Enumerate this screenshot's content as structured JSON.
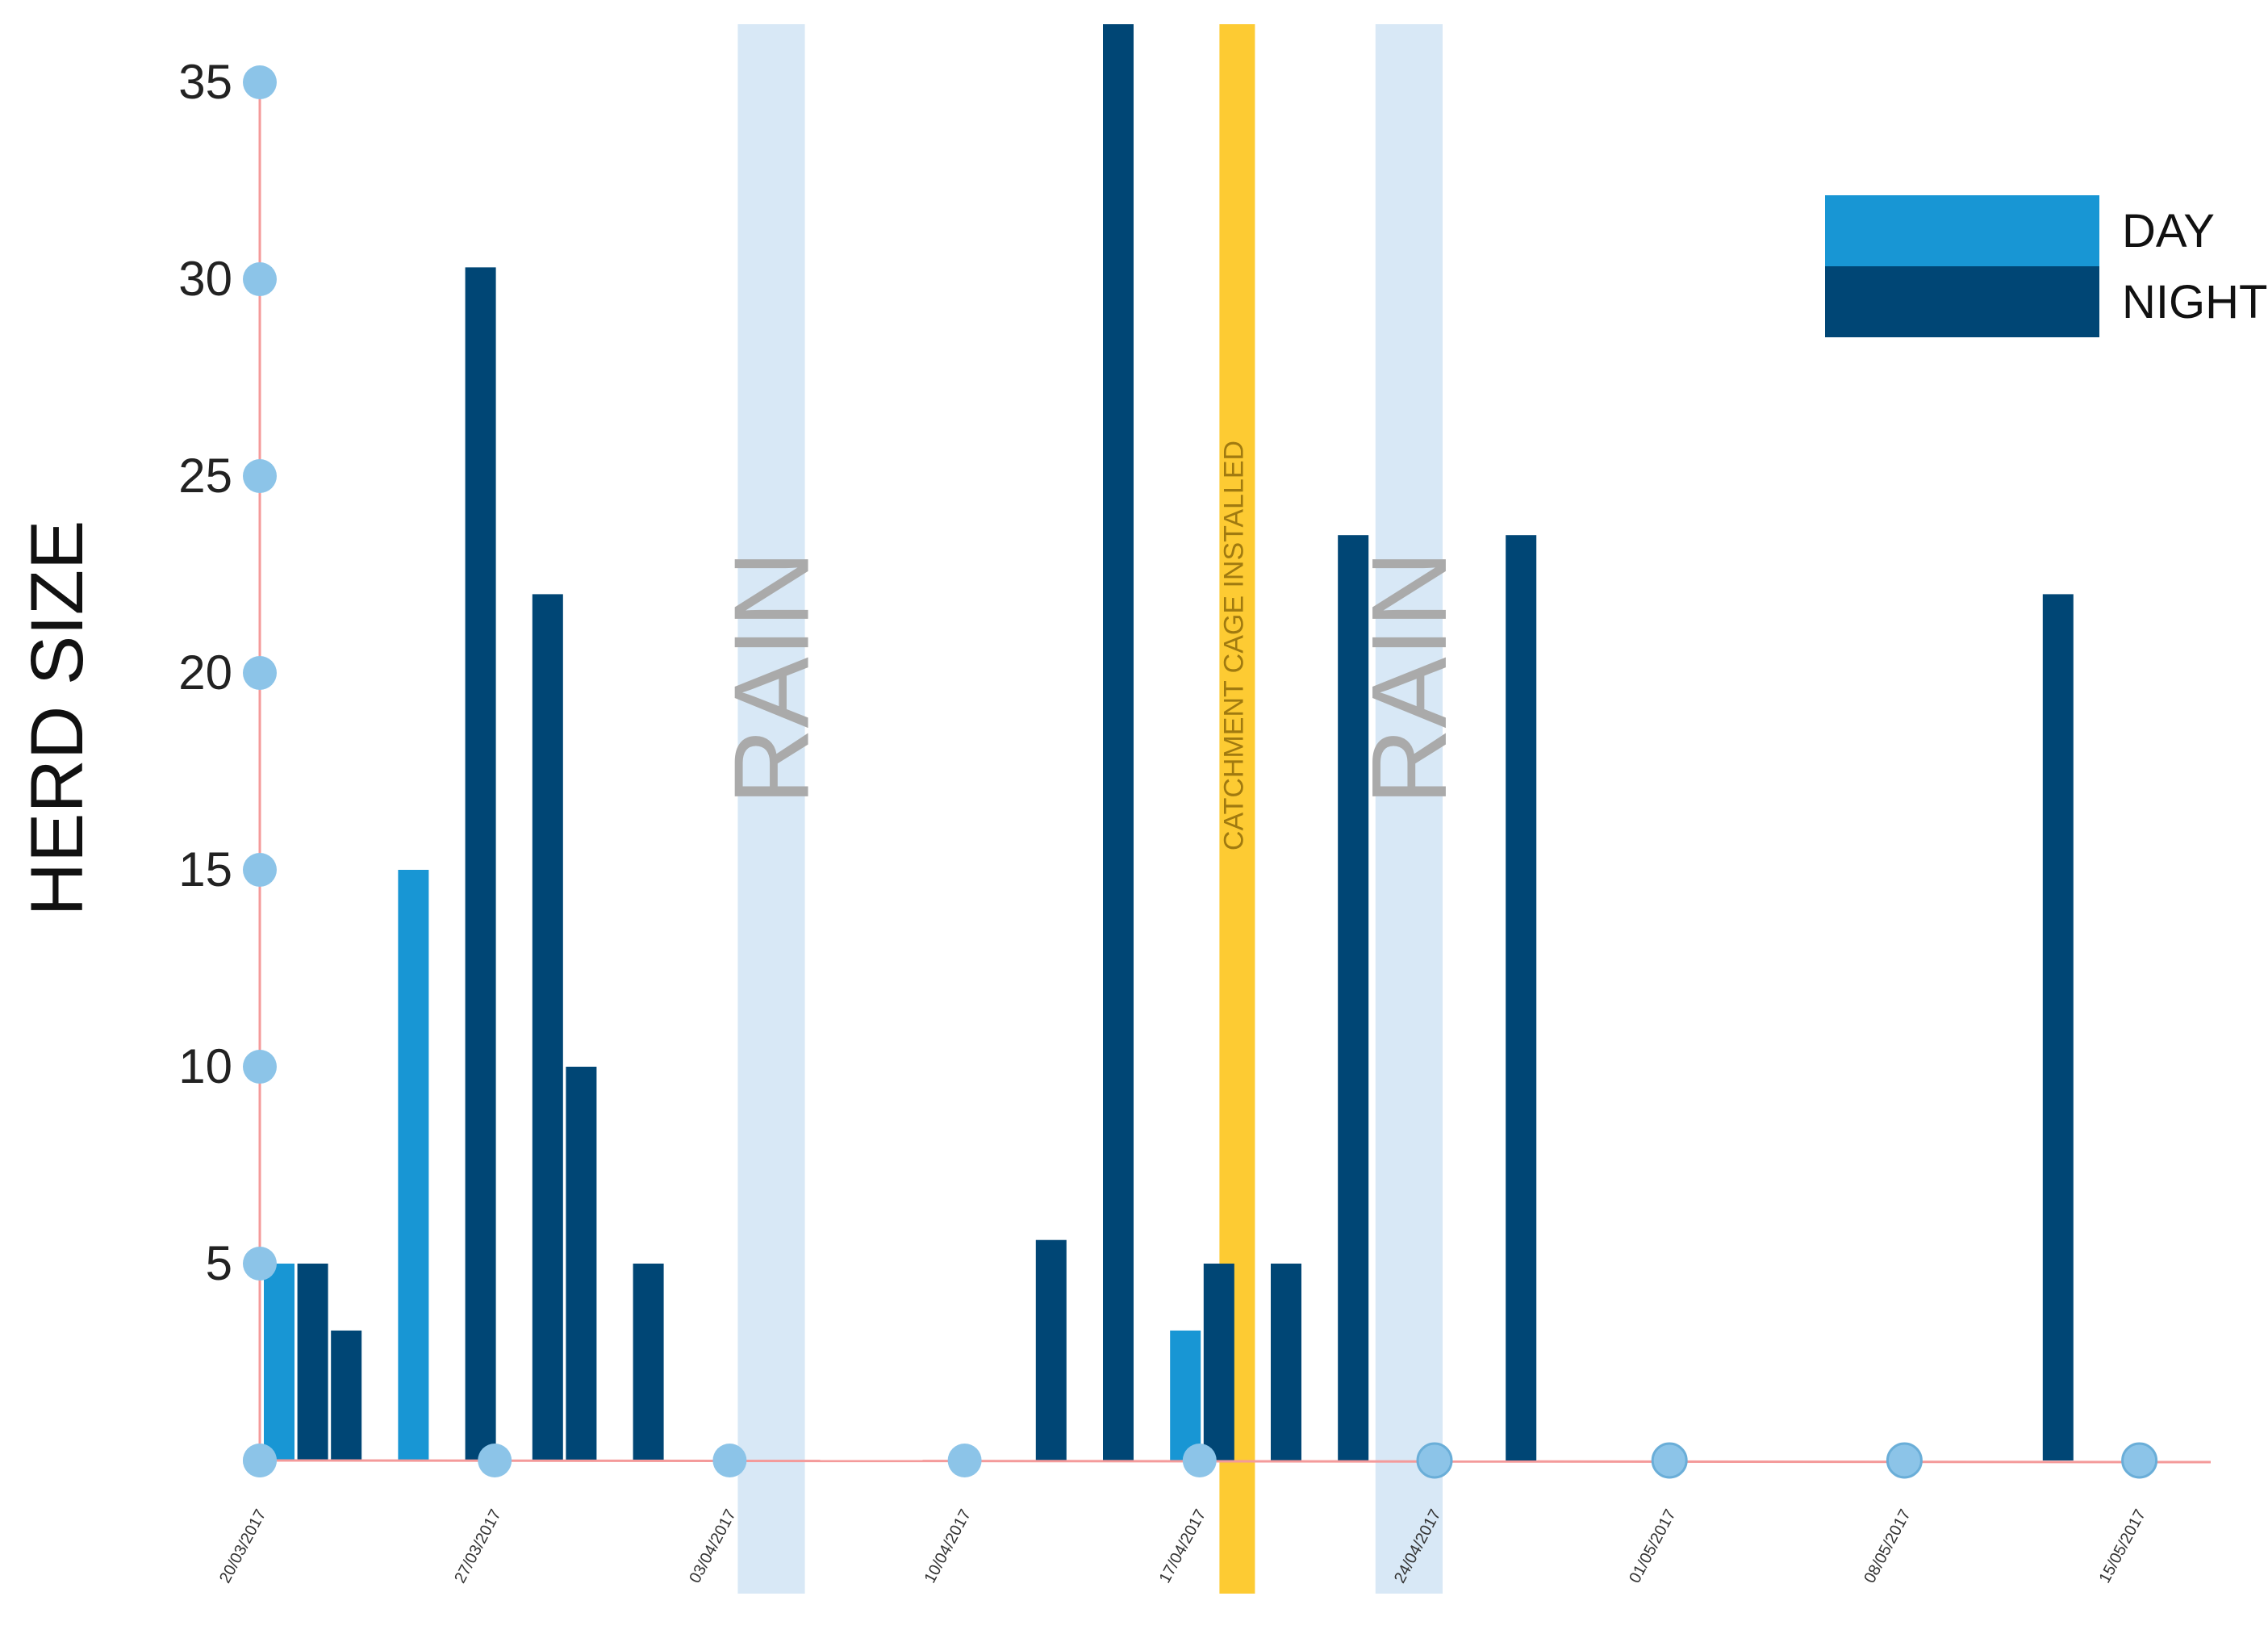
{
  "chart_data": {
    "type": "bar",
    "ylabel": "HERD SIZE",
    "ylim": [
      0,
      36
    ],
    "yticks": [
      5,
      10,
      15,
      20,
      25,
      30,
      35
    ],
    "xlim": [
      "2017-03-20",
      "2017-05-23"
    ],
    "x_ticks": [
      {
        "date": "2017-03-20",
        "label": "20/03/2017"
      },
      {
        "date": "2017-03-27",
        "label": "27/03/2017"
      },
      {
        "date": "2017-04-03",
        "label": "03/04/2017"
      },
      {
        "date": "2017-04-10",
        "label": "10/04/2017"
      },
      {
        "date": "2017-04-17",
        "label": "17/04/2017"
      },
      {
        "date": "2017-04-24",
        "label": "24/04/2017"
      },
      {
        "date": "2017-05-01",
        "label": "01/05/2017"
      },
      {
        "date": "2017-05-08",
        "label": "08/05/2017"
      },
      {
        "date": "2017-05-15",
        "label": "15/05/2017"
      }
    ],
    "legend": {
      "position": "top-right"
    },
    "series": [
      {
        "name": "DAY",
        "color": "#1896d4",
        "points": [
          {
            "x": "2017-03-20",
            "y": 5
          },
          {
            "x": "2017-03-24",
            "y": 15
          },
          {
            "x": "2017-04-16",
            "y": 3.3
          }
        ]
      },
      {
        "name": "NIGHT",
        "color": "#004675",
        "points": [
          {
            "x": "2017-03-21",
            "y": 5
          },
          {
            "x": "2017-03-22",
            "y": 3.3
          },
          {
            "x": "2017-03-26",
            "y": 30.3
          },
          {
            "x": "2017-03-28",
            "y": 22
          },
          {
            "x": "2017-03-29",
            "y": 10
          },
          {
            "x": "2017-03-31",
            "y": 5
          },
          {
            "x": "2017-04-12",
            "y": 5.6
          },
          {
            "x": "2017-04-14",
            "y": 36.5
          },
          {
            "x": "2017-04-17",
            "y": 5
          },
          {
            "x": "2017-04-19",
            "y": 5
          },
          {
            "x": "2017-04-21",
            "y": 23.5
          },
          {
            "x": "2017-04-26",
            "y": 23.5
          },
          {
            "x": "2017-05-12",
            "y": 22
          }
        ]
      }
    ],
    "annotations": [
      {
        "type": "band",
        "label": "RAIN",
        "x_start": "2017-04-03",
        "x_end": "2017-04-05",
        "color": "#d8e8f6"
      },
      {
        "type": "band",
        "label": "RAIN",
        "x_start": "2017-04-22",
        "x_end": "2017-04-24",
        "color": "#d8e8f6"
      },
      {
        "type": "line",
        "label": "CATCHMENT CAGE INSTALLED",
        "x": "2017-04-18",
        "color": "#fdcb33"
      }
    ],
    "style": {
      "axis_color": "#f49a9a",
      "marker_color": "#8cc4e8",
      "marker_edge": "#6aaed8",
      "grid": false
    }
  }
}
